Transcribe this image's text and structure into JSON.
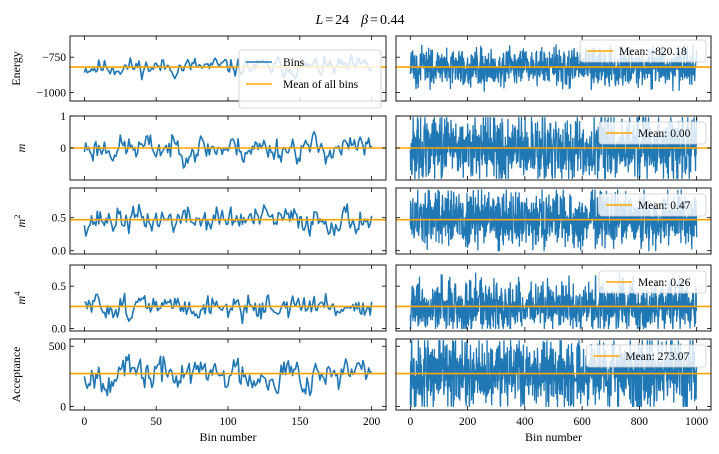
{
  "chart_data": {
    "type": "line",
    "title": "L = 24   β = 0.44",
    "title_parts": {
      "l_symbol": "L",
      "l_value": "24",
      "beta_symbol": "β",
      "beta_value": "0.44"
    },
    "colors": {
      "bins": "#1f77b4",
      "mean": "#ffa500"
    },
    "left_column": {
      "xlabel": "Bin number",
      "xlim": [
        -10,
        210
      ],
      "xticks": [
        0,
        50,
        100,
        150,
        200
      ],
      "n_bins": 200,
      "legend_entries": [
        "Bins",
        "Mean of all bins"
      ]
    },
    "right_column": {
      "xlabel": "Bin number",
      "xlim": [
        -50,
        1050
      ],
      "xticks": [
        0,
        200,
        400,
        600,
        800,
        1000
      ],
      "n_bins": 1000
    },
    "rows": [
      {
        "ylabel": "Energy",
        "ylabel_render": "plain",
        "ylim": [
          -1060,
          -600
        ],
        "yticks": [
          -750,
          -1000
        ],
        "ytick_labels": [
          "−750",
          "−1000"
        ],
        "mean": -820.18,
        "mean_label": "Mean: -820.18",
        "spread_left": 55,
        "spread_right": 65,
        "min": -1000,
        "max": -630,
        "seed": 11
      },
      {
        "ylabel": "m",
        "ylabel_render": "italic",
        "ylim": [
          -1,
          1
        ],
        "yticks": [
          1,
          0
        ],
        "ytick_labels": [
          "1",
          "0"
        ],
        "mean": 0.0,
        "mean_label": "Mean: 0.00",
        "spread_left": 0.35,
        "spread_right": 0.5,
        "min": -0.95,
        "max": 0.95,
        "seed": 23
      },
      {
        "ylabel": "m2",
        "ylabel_render": "italic-sup",
        "ylim": [
          -0.05,
          0.95
        ],
        "yticks": [
          0.5,
          0.0
        ],
        "ytick_labels": [
          "0.5",
          "0.0"
        ],
        "mean": 0.47,
        "mean_label": "Mean: 0.47",
        "spread_left": 0.17,
        "spread_right": 0.22,
        "min": 0.0,
        "max": 0.92,
        "seed": 37
      },
      {
        "ylabel": "m4",
        "ylabel_render": "italic-sup",
        "ylim": [
          -0.03,
          0.75
        ],
        "yticks": [
          0.5,
          0.0
        ],
        "ytick_labels": [
          "0.5",
          "0.0"
        ],
        "mean": 0.26,
        "mean_label": "Mean: 0.26",
        "spread_left": 0.12,
        "spread_right": 0.15,
        "min": 0.0,
        "max": 0.72,
        "seed": 51
      },
      {
        "ylabel": "Acceptance",
        "ylabel_render": "plain",
        "ylim": [
          -30,
          560
        ],
        "yticks": [
          500,
          0
        ],
        "ytick_labels": [
          "500",
          "0"
        ],
        "mean": 273.07,
        "mean_label": "Mean: 273.07",
        "spread_left": 115,
        "spread_right": 140,
        "min": 0,
        "max": 545,
        "seed": 67
      }
    ]
  }
}
